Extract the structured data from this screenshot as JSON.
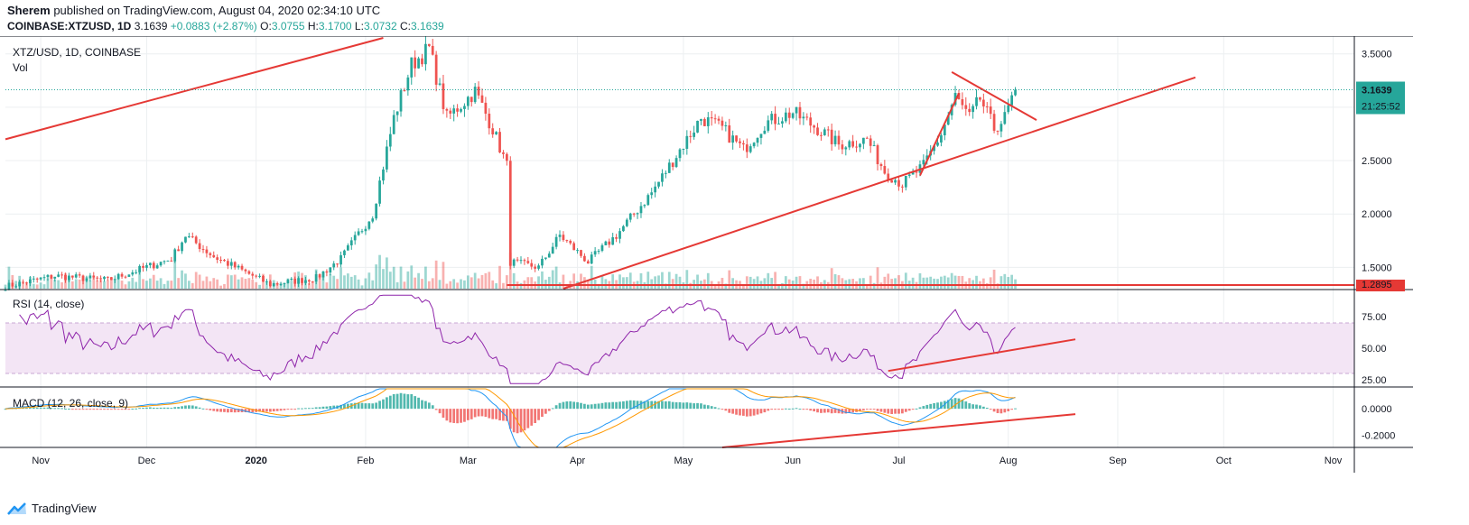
{
  "header": {
    "author": "Sherem",
    "published_text": "published on TradingView.com, August 04, 2020 02:34:10 UTC"
  },
  "ohlc": {
    "symbol": "COINBASE:XTZUSD, 1D",
    "last": "3.1639",
    "change": "+0.0883 (+2.87%)",
    "o_label": "O:",
    "o": "3.0755",
    "h_label": "H:",
    "h": "3.1700",
    "l_label": "L:",
    "l": "3.0732",
    "c_label": "C:",
    "c": "3.1639"
  },
  "footer": {
    "brand": "TradingView"
  },
  "colors": {
    "up": "#26a69a",
    "down": "#ef5350",
    "trend": "#e53935",
    "rsi": "#8e24aa",
    "rsi_band": "#f3e5f5",
    "macd": "#2196f3",
    "signal": "#ff9800",
    "grid": "#eceff1",
    "price_badge": "#26a69a",
    "support_badge": "#e53935"
  },
  "chart_data": {
    "type": "candlestick",
    "title": "XTZ/USD, 1D, COINBASE",
    "volume_label": "Vol",
    "x_ticks": [
      {
        "label": "Nov",
        "date": "2019-11-01"
      },
      {
        "label": "Dec",
        "date": "2019-12-01"
      },
      {
        "label": "2020",
        "date": "2020-01-01"
      },
      {
        "label": "Feb",
        "date": "2020-02-01"
      },
      {
        "label": "Mar",
        "date": "2020-03-01"
      },
      {
        "label": "Apr",
        "date": "2020-04-01"
      },
      {
        "label": "May",
        "date": "2020-05-01"
      },
      {
        "label": "Jun",
        "date": "2020-06-01"
      },
      {
        "label": "Jul",
        "date": "2020-07-01"
      },
      {
        "label": "Aug",
        "date": "2020-08-01"
      },
      {
        "label": "Sep",
        "date": "2020-09-01"
      },
      {
        "label": "Oct",
        "date": "2020-10-01"
      },
      {
        "label": "Nov",
        "date": "2020-11-01"
      }
    ],
    "x_range": [
      "2019-10-22",
      "2020-11-07"
    ],
    "price": {
      "ylim": [
        1.3,
        3.65
      ],
      "ticks": [
        "1.5000",
        "2.0000",
        "2.5000",
        "3.0000",
        "3.5000"
      ],
      "tick_values": [
        1.5,
        2.0,
        2.5,
        3.0,
        3.5
      ],
      "last_price": 3.1639,
      "last_label": "3.1639",
      "countdown": "21:25:52",
      "support_value": 1.2895,
      "support_label": "1.2895",
      "anchors": [
        [
          "2019-10-22",
          1.32
        ],
        [
          "2019-11-05",
          1.42
        ],
        [
          "2019-11-20",
          1.38
        ],
        [
          "2019-12-08",
          1.58
        ],
        [
          "2019-12-12",
          1.8
        ],
        [
          "2019-12-20",
          1.6
        ],
        [
          "2020-01-05",
          1.34
        ],
        [
          "2020-01-18",
          1.4
        ],
        [
          "2020-01-25",
          1.58
        ],
        [
          "2020-02-03",
          2.0
        ],
        [
          "2020-02-09",
          2.9
        ],
        [
          "2020-02-14",
          3.4
        ],
        [
          "2020-02-19",
          3.55
        ],
        [
          "2020-02-24",
          2.9
        ],
        [
          "2020-03-03",
          3.15
        ],
        [
          "2020-03-08",
          2.8
        ],
        [
          "2020-03-12",
          2.45
        ],
        [
          "2020-03-13",
          1.55
        ],
        [
          "2020-03-21",
          1.5
        ],
        [
          "2020-03-27",
          1.8
        ],
        [
          "2020-04-04",
          1.55
        ],
        [
          "2020-04-12",
          1.8
        ],
        [
          "2020-04-22",
          2.2
        ],
        [
          "2020-04-30",
          2.6
        ],
        [
          "2020-05-06",
          2.9
        ],
        [
          "2020-05-12",
          2.8
        ],
        [
          "2020-05-18",
          2.6
        ],
        [
          "2020-05-24",
          2.85
        ],
        [
          "2020-06-01",
          2.95
        ],
        [
          "2020-06-08",
          2.8
        ],
        [
          "2020-06-14",
          2.65
        ],
        [
          "2020-06-22",
          2.7
        ],
        [
          "2020-06-27",
          2.4
        ],
        [
          "2020-07-02",
          2.28
        ],
        [
          "2020-07-08",
          2.45
        ],
        [
          "2020-07-13",
          2.75
        ],
        [
          "2020-07-17",
          3.1
        ],
        [
          "2020-07-21",
          2.9
        ],
        [
          "2020-07-24",
          3.08
        ],
        [
          "2020-07-28",
          2.8
        ],
        [
          "2020-07-31",
          2.9
        ],
        [
          "2020-08-03",
          3.1639
        ]
      ],
      "trendlines": [
        {
          "from": [
            "2019-10-22",
            2.7
          ],
          "to": [
            "2020-02-06",
            3.65
          ]
        },
        {
          "from": [
            "2020-03-28",
            1.3
          ],
          "to": [
            "2020-09-23",
            3.28
          ]
        },
        {
          "from": [
            "2020-07-07",
            2.36
          ],
          "to": [
            "2020-07-18",
            3.13
          ]
        },
        {
          "from": [
            "2020-07-16",
            3.33
          ],
          "to": [
            "2020-08-09",
            2.88
          ]
        }
      ]
    },
    "rsi": {
      "label": "RSI (14, close)",
      "ylim": [
        20,
        95
      ],
      "ticks": [
        "25.00",
        "50.00",
        "75.00"
      ],
      "tick_values": [
        25,
        50,
        75
      ],
      "upper_band": 70,
      "lower_band": 30,
      "trendline": {
        "from": [
          "2020-06-28",
          32
        ],
        "to": [
          "2020-08-20",
          57
        ]
      }
    },
    "macd": {
      "label": "MACD (12, 26, close, 9)",
      "ylim": [
        -0.29,
        0.15
      ],
      "ticks": [
        "0.0000",
        "-0.2000"
      ],
      "tick_values": [
        0.0,
        -0.2
      ],
      "trendline": {
        "from": [
          "2020-05-12",
          -0.29
        ],
        "to": [
          "2020-08-20",
          -0.04
        ]
      }
    }
  }
}
